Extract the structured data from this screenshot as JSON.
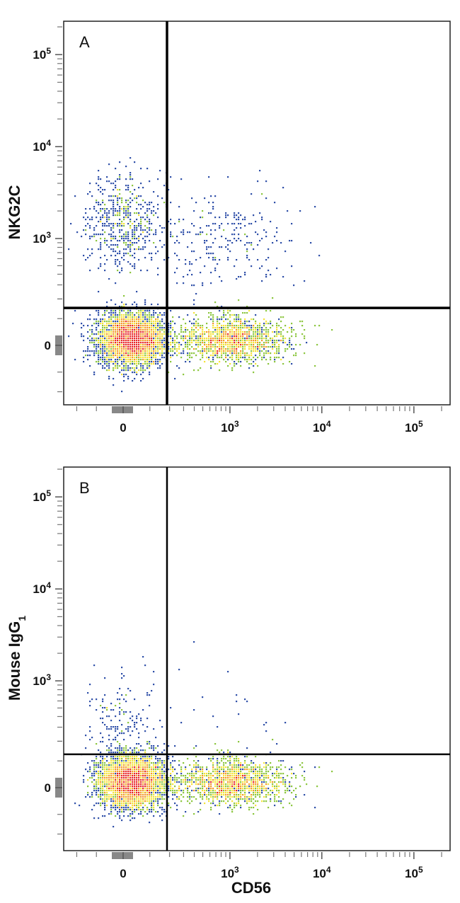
{
  "chart_data": [
    {
      "type": "scatter",
      "panel_label": "A",
      "xlabel": "",
      "ylabel": "NKG2C",
      "x_scale": "biexponential",
      "y_scale": "biexponential",
      "xlim": [
        -290,
        250000
      ],
      "ylim": [
        -290,
        230000
      ],
      "x_ticks": [
        {
          "value": 0,
          "label": "0"
        },
        {
          "value": 1000,
          "label": "10",
          "exp": "3"
        },
        {
          "value": 10000,
          "label": "10",
          "exp": "4"
        },
        {
          "value": 100000,
          "label": "10",
          "exp": "5"
        }
      ],
      "y_ticks": [
        {
          "value": 0,
          "label": "0"
        },
        {
          "value": 1000,
          "label": "10",
          "exp": "3"
        },
        {
          "value": 10000,
          "label": "10",
          "exp": "4"
        },
        {
          "value": 100000,
          "label": "10",
          "exp": "5"
        }
      ],
      "gates": {
        "x": 185,
        "y": 150
      },
      "coloring": "density (blue-cyan-green-yellow-red)",
      "populations": [
        {
          "x_center": 30,
          "y_center": 20,
          "count": 4200
        },
        {
          "x_center": 1000,
          "y_center": 20,
          "count": 2600
        },
        {
          "x_center": 0,
          "y_center": 1500,
          "count": 600
        },
        {
          "x_center": 900,
          "y_center": 1000,
          "count": 260
        }
      ]
    },
    {
      "type": "scatter",
      "panel_label": "B",
      "xlabel": "CD56",
      "ylabel": "Mouse IgG",
      "ylabel_sub": "1",
      "x_scale": "biexponential",
      "y_scale": "biexponential",
      "xlim": [
        -290,
        250000
      ],
      "ylim": [
        -290,
        230000
      ],
      "x_ticks": [
        {
          "value": 0,
          "label": "0"
        },
        {
          "value": 1000,
          "label": "10",
          "exp": "3"
        },
        {
          "value": 10000,
          "label": "10",
          "exp": "4"
        },
        {
          "value": 100000,
          "label": "10",
          "exp": "5"
        }
      ],
      "y_ticks": [
        {
          "value": 0,
          "label": "0"
        },
        {
          "value": 1000,
          "label": "10",
          "exp": "3"
        },
        {
          "value": 10000,
          "label": "10",
          "exp": "4"
        },
        {
          "value": 100000,
          "label": "10",
          "exp": "5"
        }
      ],
      "gates": {
        "x": 185,
        "y": 130
      },
      "coloring": "density (blue-cyan-green-yellow-red)",
      "populations": [
        {
          "x_center": 30,
          "y_center": 20,
          "count": 4200
        },
        {
          "x_center": 1000,
          "y_center": 20,
          "count": 2600
        },
        {
          "x_center": 0,
          "y_center": 400,
          "count": 160
        },
        {
          "x_center": 800,
          "y_center": 300,
          "count": 25
        }
      ]
    }
  ],
  "colors": {
    "low": "#2f4fa8",
    "mid_low": "#3aa8d8",
    "mid": "#8cc63f",
    "mid_high": "#f5e33a",
    "high": "#f39a2b",
    "peak": "#e8282a",
    "gate": "#000000"
  }
}
